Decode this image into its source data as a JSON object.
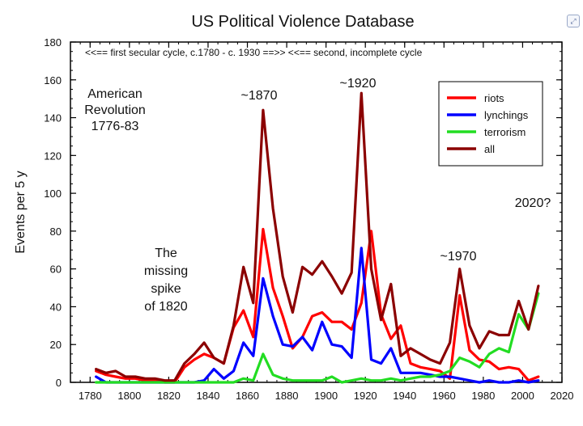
{
  "chart_data": {
    "type": "line",
    "title": "US Political Violence Database",
    "xlabel": "",
    "ylabel": "Events per 5 y",
    "xlim": [
      1770,
      2020
    ],
    "ylim": [
      0,
      180
    ],
    "xticks": [
      1780,
      1800,
      1820,
      1840,
      1860,
      1880,
      1900,
      1920,
      1940,
      1960,
      1980,
      2000,
      2020
    ],
    "yticks": [
      0,
      20,
      40,
      60,
      80,
      100,
      120,
      140,
      160,
      180
    ],
    "x_minor_step": 5,
    "y_minor_step": 5,
    "legend_position": "top-right",
    "series": [
      {
        "name": "riots",
        "color": "#ff0000",
        "x": [
          1783,
          1788,
          1793,
          1798,
          1803,
          1808,
          1813,
          1818,
          1823,
          1828,
          1833,
          1838,
          1843,
          1848,
          1853,
          1858,
          1863,
          1868,
          1873,
          1878,
          1883,
          1888,
          1893,
          1898,
          1903,
          1908,
          1913,
          1918,
          1923,
          1928,
          1933,
          1938,
          1943,
          1948,
          1953,
          1958,
          1963,
          1968,
          1973,
          1978,
          1983,
          1988,
          1993,
          1998,
          2003,
          2008
        ],
        "values": [
          6,
          4,
          3,
          2,
          2,
          1,
          1,
          0,
          0,
          8,
          12,
          15,
          13,
          10,
          29,
          38,
          24,
          81,
          50,
          35,
          18,
          24,
          35,
          37,
          32,
          32,
          28,
          42,
          80,
          36,
          23,
          30,
          10,
          8,
          7,
          6,
          2,
          46,
          17,
          12,
          11,
          7,
          8,
          7,
          1,
          3
        ]
      },
      {
        "name": "lynchings",
        "color": "#0000ff",
        "x": [
          1783,
          1788,
          1793,
          1798,
          1803,
          1808,
          1813,
          1818,
          1823,
          1828,
          1833,
          1838,
          1843,
          1848,
          1853,
          1858,
          1863,
          1868,
          1873,
          1878,
          1883,
          1888,
          1893,
          1898,
          1903,
          1908,
          1913,
          1918,
          1923,
          1928,
          1933,
          1938,
          1943,
          1948,
          1953,
          1958,
          1963,
          1968,
          1973,
          1978,
          1983,
          1988,
          1993,
          1998,
          2003,
          2008
        ],
        "values": [
          3,
          0,
          0,
          0,
          0,
          0,
          0,
          0,
          0,
          0,
          0,
          1,
          7,
          2,
          6,
          21,
          14,
          55,
          35,
          20,
          19,
          24,
          17,
          32,
          20,
          19,
          13,
          71,
          12,
          10,
          18,
          5,
          5,
          5,
          4,
          3,
          3,
          2,
          1,
          0,
          1,
          0,
          0,
          1,
          0,
          1
        ]
      },
      {
        "name": "terrorism",
        "color": "#22dd22",
        "x": [
          1783,
          1788,
          1793,
          1798,
          1803,
          1808,
          1813,
          1818,
          1823,
          1828,
          1833,
          1838,
          1843,
          1848,
          1853,
          1858,
          1863,
          1868,
          1873,
          1878,
          1883,
          1888,
          1893,
          1898,
          1903,
          1908,
          1913,
          1918,
          1923,
          1928,
          1933,
          1938,
          1943,
          1948,
          1953,
          1958,
          1963,
          1968,
          1973,
          1978,
          1983,
          1988,
          1993,
          1998,
          2003,
          2008
        ],
        "values": [
          0,
          0,
          0,
          0,
          0,
          0,
          0,
          0,
          0,
          0,
          0,
          0,
          0,
          0,
          0,
          2,
          1,
          15,
          4,
          2,
          1,
          1,
          1,
          1,
          3,
          0,
          1,
          2,
          1,
          1,
          2,
          1,
          2,
          3,
          3,
          4,
          6,
          13,
          11,
          8,
          15,
          18,
          16,
          36,
          28,
          47
        ]
      },
      {
        "name": "all",
        "color": "#8b0000",
        "x": [
          1783,
          1788,
          1793,
          1798,
          1803,
          1808,
          1813,
          1818,
          1823,
          1828,
          1833,
          1838,
          1843,
          1848,
          1853,
          1858,
          1863,
          1868,
          1873,
          1878,
          1883,
          1888,
          1893,
          1898,
          1903,
          1908,
          1913,
          1918,
          1923,
          1928,
          1933,
          1938,
          1943,
          1948,
          1953,
          1958,
          1963,
          1968,
          1973,
          1978,
          1983,
          1988,
          1993,
          1998,
          2003,
          2008
        ],
        "values": [
          7,
          5,
          6,
          3,
          3,
          2,
          2,
          1,
          1,
          10,
          15,
          21,
          13,
          10,
          30,
          61,
          42,
          144,
          92,
          56,
          37,
          61,
          57,
          64,
          56,
          47,
          58,
          153,
          60,
          33,
          52,
          14,
          18,
          15,
          12,
          10,
          21,
          60,
          30,
          18,
          27,
          25,
          25,
          43,
          28,
          51
        ]
      }
    ],
    "annotations": [
      {
        "id": "revolution",
        "lines": [
          "American",
          "Revolution",
          "1776-83"
        ]
      },
      {
        "id": "missing-spike",
        "lines": [
          "The",
          "missing",
          "spike",
          "of 1820"
        ]
      },
      {
        "id": "peak-1870",
        "lines": [
          "~1870"
        ]
      },
      {
        "id": "peak-1920",
        "lines": [
          "~1920"
        ]
      },
      {
        "id": "peak-1970",
        "lines": [
          "~1970"
        ]
      },
      {
        "id": "question-2020",
        "lines": [
          "2020?"
        ]
      },
      {
        "id": "cycles-banner",
        "lines": [
          "<<==  first secular cycle, c.1780 - c. 1930  ==>> <<== second, incomplete cycle"
        ]
      }
    ]
  },
  "icons": {
    "corner": "expand-icon"
  }
}
